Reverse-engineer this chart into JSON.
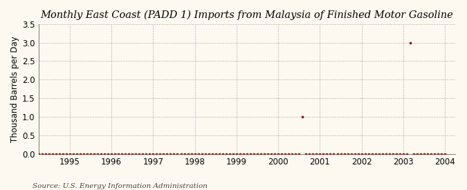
{
  "title": "Monthly East Coast (PADD 1) Imports from Malaysia of Finished Motor Gasoline",
  "ylabel": "Thousand Barrels per Day",
  "source": "Source: U.S. Energy Information Administration",
  "background_color": "#fef9f0",
  "marker_color": "#8b1a1a",
  "xlim_start": 1994.25,
  "xlim_end": 2004.25,
  "ylim": [
    0,
    3.5
  ],
  "yticks": [
    0.0,
    0.5,
    1.0,
    1.5,
    2.0,
    2.5,
    3.0,
    3.5
  ],
  "xtick_years": [
    1995,
    1996,
    1997,
    1998,
    1999,
    2000,
    2001,
    2002,
    2003,
    2004
  ],
  "data_dates": [
    1994.083,
    1994.167,
    1994.25,
    1994.333,
    1994.417,
    1994.5,
    1994.583,
    1994.667,
    1994.75,
    1994.833,
    1994.917,
    1995.0,
    1995.083,
    1995.167,
    1995.25,
    1995.333,
    1995.417,
    1995.5,
    1995.583,
    1995.667,
    1995.75,
    1995.833,
    1995.917,
    1996.0,
    1996.083,
    1996.167,
    1996.25,
    1996.333,
    1996.417,
    1996.5,
    1996.583,
    1996.667,
    1996.75,
    1996.833,
    1996.917,
    1997.0,
    1997.083,
    1997.167,
    1997.25,
    1997.333,
    1997.417,
    1997.5,
    1997.583,
    1997.667,
    1997.75,
    1997.833,
    1997.917,
    1998.0,
    1998.083,
    1998.167,
    1998.25,
    1998.333,
    1998.417,
    1998.5,
    1998.583,
    1998.667,
    1998.75,
    1998.833,
    1998.917,
    1999.0,
    1999.083,
    1999.167,
    1999.25,
    1999.333,
    1999.417,
    1999.5,
    1999.583,
    1999.667,
    1999.75,
    1999.833,
    1999.917,
    2000.0,
    2000.083,
    2000.167,
    2000.25,
    2000.333,
    2000.417,
    2000.5,
    2000.583,
    2000.667,
    2000.75,
    2000.833,
    2000.917,
    2001.0,
    2001.083,
    2001.167,
    2001.25,
    2001.333,
    2001.417,
    2001.5,
    2001.583,
    2001.667,
    2001.75,
    2001.833,
    2001.917,
    2002.0,
    2002.083,
    2002.167,
    2002.25,
    2002.333,
    2002.417,
    2002.5,
    2002.583,
    2002.667,
    2002.75,
    2002.833,
    2002.917,
    2003.0,
    2003.083,
    2003.167,
    2003.25,
    2003.333,
    2003.417,
    2003.5,
    2003.583,
    2003.667,
    2003.75,
    2003.833,
    2003.917,
    2004.0
  ],
  "data_values": [
    0,
    0,
    0,
    0,
    0,
    0,
    0,
    0,
    0,
    0,
    0,
    0,
    0,
    0,
    0,
    0,
    0,
    0,
    0,
    0,
    0,
    0,
    0,
    0,
    0,
    0,
    0,
    0,
    0,
    0,
    0,
    0,
    0,
    0,
    0,
    0,
    0,
    0,
    0,
    0,
    0,
    0,
    0,
    0,
    0,
    0,
    0,
    0,
    0,
    0,
    0,
    0,
    0,
    0,
    0,
    0,
    0,
    0,
    0,
    0,
    0,
    0,
    0,
    0,
    0,
    0,
    0,
    0,
    0,
    0,
    0,
    0,
    0,
    0,
    0,
    0,
    0,
    0,
    1.0,
    0,
    0,
    0,
    0,
    0,
    0,
    0,
    0,
    0,
    0,
    0,
    0,
    0,
    0,
    0,
    0,
    0,
    0,
    0,
    0,
    0,
    0,
    0,
    0,
    0,
    0,
    0,
    0,
    0,
    0,
    3.0,
    0,
    0,
    0,
    0,
    0,
    0,
    0,
    0,
    0,
    0
  ],
  "title_fontsize": 10.5,
  "label_fontsize": 8.5,
  "source_fontsize": 7.5,
  "marker_size": 3.0,
  "grid_color": "#aaaaaa",
  "grid_linewidth": 0.5
}
